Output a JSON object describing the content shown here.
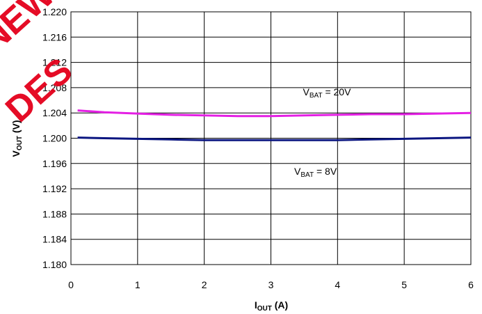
{
  "chart_data": {
    "type": "line",
    "xlabel": {
      "main": "I",
      "sub": "OUT",
      "unit": " (A)"
    },
    "ylabel": {
      "main": "V",
      "sub": "OUT",
      "unit": " (V)"
    },
    "xlim": [
      0,
      6
    ],
    "ylim": [
      1.18,
      1.22
    ],
    "x_ticks": [
      "0",
      "1",
      "2",
      "3",
      "4",
      "5",
      "6"
    ],
    "y_ticks": [
      "1.180",
      "1.184",
      "1.188",
      "1.192",
      "1.196",
      "1.200",
      "1.204",
      "1.208",
      "1.212",
      "1.216",
      "1.220"
    ],
    "grid": true,
    "series": [
      {
        "color": "#e41fe4",
        "x": [
          0.1,
          0.5,
          1.0,
          1.5,
          2.0,
          2.5,
          3.0,
          3.5,
          4.0,
          4.5,
          5.0,
          5.5,
          6.0
        ],
        "y": [
          1.2044,
          1.2041,
          1.2039,
          1.2037,
          1.2036,
          1.2035,
          1.2035,
          1.2036,
          1.2037,
          1.2038,
          1.2038,
          1.2039,
          1.204
        ]
      },
      {
        "color": "#0a1580",
        "x": [
          0.1,
          0.5,
          1.0,
          1.5,
          2.0,
          2.5,
          3.0,
          3.5,
          4.0,
          4.5,
          5.0,
          5.5,
          6.0
        ],
        "y": [
          1.2001,
          1.2,
          1.1999,
          1.1998,
          1.1997,
          1.1997,
          1.1997,
          1.1997,
          1.1997,
          1.1998,
          1.1999,
          1.2,
          1.2001
        ]
      }
    ],
    "annotations": [
      {
        "main": "V",
        "sub": "BAT",
        "rest": " = 20V",
        "x": 3.48,
        "y": 1.2068
      },
      {
        "main": "V",
        "sub": "BAT",
        "rest": " = 8V",
        "x": 3.35,
        "y": 1.1942
      }
    ]
  },
  "watermark": {
    "lines": [
      "NEW",
      "DES"
    ],
    "color": "#e4001b"
  }
}
